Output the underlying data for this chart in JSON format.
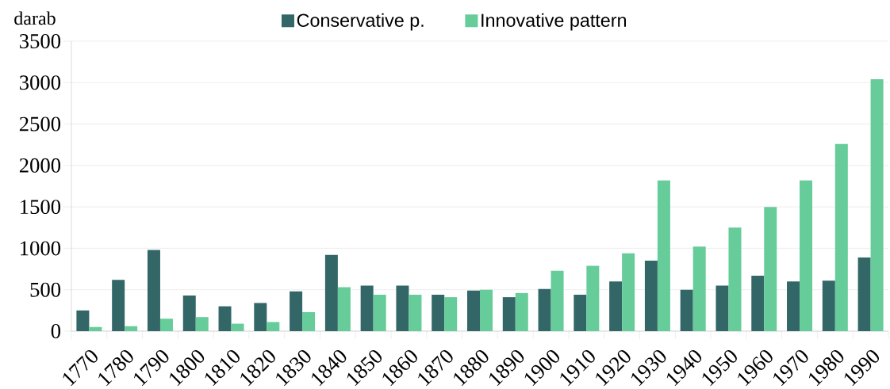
{
  "chart_data": {
    "type": "bar",
    "ylabel": "darab",
    "categories": [
      "1770",
      "1780",
      "1790",
      "1800",
      "1810",
      "1820",
      "1830",
      "1840",
      "1850",
      "1860",
      "1870",
      "1880",
      "1890",
      "1900",
      "1910",
      "1920",
      "1930",
      "1940",
      "1950",
      "1960",
      "1970",
      "1980",
      "1990"
    ],
    "series": [
      {
        "name": "Conservative p.",
        "color": "#336666",
        "values": [
          250,
          620,
          980,
          430,
          300,
          340,
          480,
          920,
          550,
          550,
          440,
          490,
          410,
          510,
          440,
          600,
          850,
          500,
          550,
          670,
          600,
          610,
          890
        ]
      },
      {
        "name": "Innovative pattern",
        "color": "#66cc99",
        "values": [
          50,
          60,
          150,
          170,
          90,
          110,
          230,
          530,
          440,
          440,
          410,
          500,
          460,
          730,
          790,
          940,
          1820,
          1020,
          1250,
          1500,
          1820,
          2260,
          3040
        ]
      }
    ],
    "ylim": [
      0,
      3500
    ],
    "yticks": [
      0,
      500,
      1000,
      1500,
      2000,
      2500,
      3000,
      3500
    ],
    "grid": "y",
    "legend": "top"
  }
}
